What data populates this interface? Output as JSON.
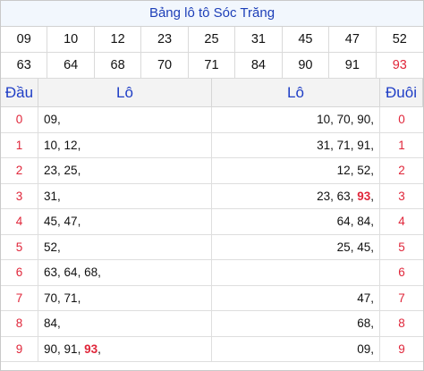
{
  "title": "Bảng lô tô Sóc Trăng",
  "numbers": [
    {
      "v": "09",
      "red": false
    },
    {
      "v": "10",
      "red": false
    },
    {
      "v": "12",
      "red": false
    },
    {
      "v": "23",
      "red": false
    },
    {
      "v": "25",
      "red": false
    },
    {
      "v": "31",
      "red": false
    },
    {
      "v": "45",
      "red": false
    },
    {
      "v": "47",
      "red": false
    },
    {
      "v": "52",
      "red": false
    },
    {
      "v": "63",
      "red": false
    },
    {
      "v": "64",
      "red": false
    },
    {
      "v": "68",
      "red": false
    },
    {
      "v": "70",
      "red": false
    },
    {
      "v": "71",
      "red": false
    },
    {
      "v": "84",
      "red": false
    },
    {
      "v": "90",
      "red": false
    },
    {
      "v": "91",
      "red": false
    },
    {
      "v": "93",
      "red": true
    }
  ],
  "headers": {
    "dau": "Đầu",
    "lo_left": "Lô",
    "lo_right": "Lô",
    "duoi": "Đuôi"
  },
  "rows": [
    {
      "dau": "0",
      "left": [
        {
          "t": "09"
        }
      ],
      "right": [
        {
          "t": "10"
        },
        {
          "t": "70"
        },
        {
          "t": "90"
        }
      ],
      "duoi": "0"
    },
    {
      "dau": "1",
      "left": [
        {
          "t": "10"
        },
        {
          "t": "12"
        }
      ],
      "right": [
        {
          "t": "31"
        },
        {
          "t": "71"
        },
        {
          "t": "91"
        }
      ],
      "duoi": "1"
    },
    {
      "dau": "2",
      "left": [
        {
          "t": "23"
        },
        {
          "t": "25"
        }
      ],
      "right": [
        {
          "t": "12"
        },
        {
          "t": "52"
        }
      ],
      "duoi": "2"
    },
    {
      "dau": "3",
      "left": [
        {
          "t": "31"
        }
      ],
      "right": [
        {
          "t": "23"
        },
        {
          "t": "63"
        },
        {
          "t": "93",
          "hl": true
        }
      ],
      "duoi": "3"
    },
    {
      "dau": "4",
      "left": [
        {
          "t": "45"
        },
        {
          "t": "47"
        }
      ],
      "right": [
        {
          "t": "64"
        },
        {
          "t": "84"
        }
      ],
      "duoi": "4"
    },
    {
      "dau": "5",
      "left": [
        {
          "t": "52"
        }
      ],
      "right": [
        {
          "t": "25"
        },
        {
          "t": "45"
        }
      ],
      "duoi": "5"
    },
    {
      "dau": "6",
      "left": [
        {
          "t": "63"
        },
        {
          "t": "64"
        },
        {
          "t": "68"
        }
      ],
      "right": [],
      "duoi": "6"
    },
    {
      "dau": "7",
      "left": [
        {
          "t": "70"
        },
        {
          "t": "71"
        }
      ],
      "right": [
        {
          "t": "47"
        }
      ],
      "duoi": "7"
    },
    {
      "dau": "8",
      "left": [
        {
          "t": "84"
        }
      ],
      "right": [
        {
          "t": "68"
        }
      ],
      "duoi": "8"
    },
    {
      "dau": "9",
      "left": [
        {
          "t": "90"
        },
        {
          "t": "91"
        },
        {
          "t": "93",
          "hl": true
        }
      ],
      "right": [
        {
          "t": "09"
        }
      ],
      "duoi": "9"
    }
  ]
}
